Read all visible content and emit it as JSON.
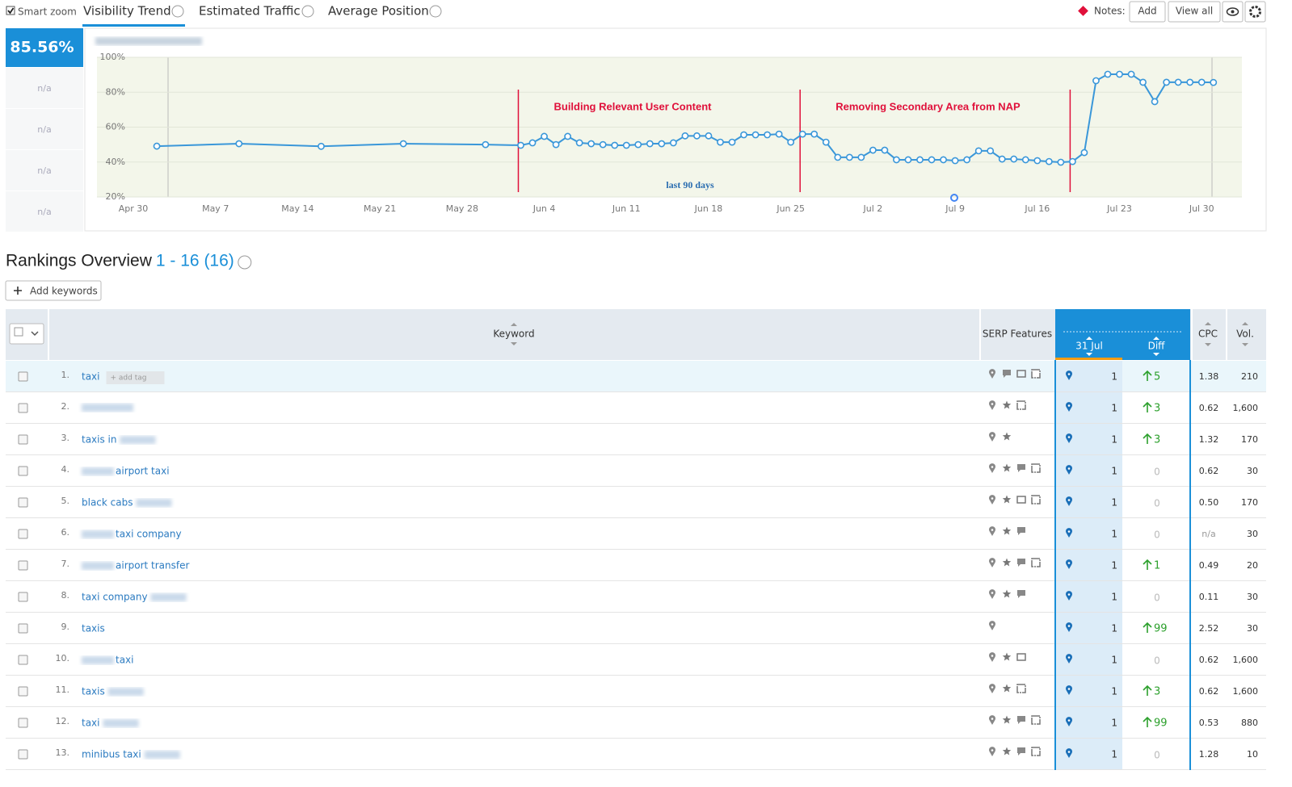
{
  "toolbar": {
    "smart_zoom": "Smart zoom",
    "tabs": [
      "Visibility Trend",
      "Estimated Traffic",
      "Average Position"
    ],
    "notes_label": "Notes:",
    "add": "Add",
    "view_all": "View all"
  },
  "summary": {
    "value": "85.56%",
    "others": [
      "n/a",
      "n/a",
      "n/a",
      "n/a"
    ]
  },
  "chart_data": {
    "type": "line",
    "color": "#3a97d9",
    "x": [
      "May 2",
      "May 9",
      "May 16",
      "May 23",
      "May 30",
      "Jun 2",
      "Jun 3",
      "Jun 4",
      "Jun 5",
      "Jun 6",
      "Jun 7",
      "Jun 8",
      "Jun 9",
      "Jun 10",
      "Jun 11",
      "Jun 12",
      "Jun 13",
      "Jun 14",
      "Jun 15",
      "Jun 16",
      "Jun 17",
      "Jun 18",
      "Jun 19",
      "Jun 20",
      "Jun 21",
      "Jun 22",
      "Jun 23",
      "Jun 24",
      "Jun 25",
      "Jun 26",
      "Jun 27",
      "Jun 28",
      "Jun 29",
      "Jun 30",
      "Jul 1",
      "Jul 2",
      "Jul 3",
      "Jul 4",
      "Jul 5",
      "Jul 6",
      "Jul 7",
      "Jul 8",
      "Jul 9",
      "Jul 10",
      "Jul 11",
      "Jul 12",
      "Jul 13",
      "Jul 14",
      "Jul 15",
      "Jul 16",
      "Jul 17",
      "Jul 18",
      "Jul 19",
      "Jul 20",
      "Jul 21",
      "Jul 22",
      "Jul 23",
      "Jul 24",
      "Jul 25",
      "Jul 26",
      "Jul 27",
      "Jul 28",
      "Jul 29",
      "Jul 30",
      "Jul 31"
    ],
    "values": [
      49.1,
      50.5,
      49,
      50.5,
      50,
      49.6,
      51,
      54.7,
      50,
      54.7,
      51,
      50.5,
      50,
      49.6,
      49.6,
      50,
      50.5,
      50.5,
      51,
      55,
      55,
      55,
      51.4,
      51.4,
      55.6,
      55.6,
      55.6,
      56,
      51.4,
      56,
      56,
      51.4,
      42.7,
      42.7,
      42.7,
      46.8,
      46.8,
      41.3,
      41.3,
      41.3,
      41.3,
      41.3,
      40.8,
      41.3,
      46.4,
      46.4,
      41.7,
      41.7,
      41.3,
      40.8,
      40.3,
      39.9,
      40.3,
      45.4,
      86.6,
      90.3,
      90.3,
      90.3,
      85.7,
      74.6,
      85.7,
      85.7,
      85.7,
      85.7,
      85.6
    ],
    "xticks": [
      "Apr 30",
      "May 7",
      "May 14",
      "May 21",
      "May 28",
      "Jun 4",
      "Jun 11",
      "Jun 18",
      "Jun 25",
      "Jul 2",
      "Jul 9",
      "Jul 16",
      "Jul 23",
      "Jul 30"
    ],
    "ylim": [
      20,
      100
    ],
    "yticks": [
      {
        "value": 20,
        "label": "20%"
      },
      {
        "value": 40,
        "label": "40%"
      },
      {
        "value": 60,
        "label": "60%"
      },
      {
        "value": 80,
        "label": "80%"
      },
      {
        "value": 100,
        "label": "100%"
      }
    ],
    "grid": true,
    "annotations": [
      {
        "x": "Jun 2",
        "text": "Building Relevant User Content"
      },
      {
        "x": "Jun 26",
        "text": "Removing Secondary Area from NAP"
      },
      {
        "x": "Jul 19"
      }
    ],
    "period_label": "last 90 days"
  },
  "rankings": {
    "title": "Rankings Overview",
    "range": "1 - 16 (16)",
    "add_keywords": "Add keywords",
    "add_tag": "+ add tag",
    "columns": {
      "keyword": "Keyword",
      "serp": "SERP Features",
      "date": "31 Jul",
      "diff": "Diff",
      "cpc": "CPC",
      "vol": "Vol."
    },
    "rows": [
      {
        "num": "1.",
        "keyword": "taxi",
        "position": 1,
        "diff": 5,
        "cpc": "1.38",
        "vol": "210"
      },
      {
        "num": "2.",
        "keyword": null,
        "position": 1,
        "diff": 3,
        "cpc": "0.62",
        "vol": "1,600"
      },
      {
        "num": "3.",
        "keyword": "taxis in",
        "position": 1,
        "diff": 3,
        "cpc": "1.32",
        "vol": "170"
      },
      {
        "num": "4.",
        "keyword": "airport taxi",
        "position": 1,
        "diff": 0,
        "cpc": "0.62",
        "vol": "30"
      },
      {
        "num": "5.",
        "keyword": "black cabs",
        "position": 1,
        "diff": 0,
        "cpc": "0.50",
        "vol": "170"
      },
      {
        "num": "6.",
        "keyword": "taxi company",
        "position": 1,
        "diff": 0,
        "cpc": "n/a",
        "vol": "30"
      },
      {
        "num": "7.",
        "keyword": "airport transfer",
        "position": 1,
        "diff": 1,
        "cpc": "0.49",
        "vol": "20"
      },
      {
        "num": "8.",
        "keyword": "taxi company",
        "position": 1,
        "diff": 0,
        "cpc": "0.11",
        "vol": "30"
      },
      {
        "num": "9.",
        "keyword": "taxis",
        "position": 1,
        "diff": 99,
        "cpc": "2.52",
        "vol": "30"
      },
      {
        "num": "10.",
        "keyword": "taxi",
        "position": 1,
        "diff": 0,
        "cpc": "0.62",
        "vol": "1,600"
      },
      {
        "num": "11.",
        "keyword": "taxis",
        "position": 1,
        "diff": 3,
        "cpc": "0.62",
        "vol": "1,600"
      },
      {
        "num": "12.",
        "keyword": "taxi",
        "position": 1,
        "diff": 99,
        "cpc": "0.53",
        "vol": "880"
      },
      {
        "num": "13.",
        "keyword": "minibus taxi",
        "position": 1,
        "diff": 0,
        "cpc": "1.28",
        "vol": "10"
      }
    ]
  }
}
